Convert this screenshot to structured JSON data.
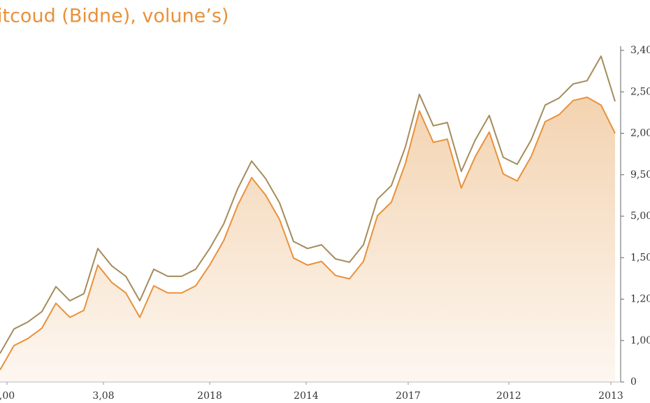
{
  "chart_data": {
    "type": "line",
    "title": "itcoud (Bidne), volune’s)",
    "x": [
      0,
      1,
      2,
      3,
      4,
      5,
      6,
      7,
      8,
      9,
      10,
      11,
      12,
      13,
      14,
      15,
      16,
      17,
      18,
      19,
      20,
      21,
      22,
      23,
      24,
      25,
      26,
      27,
      28,
      29,
      30,
      31,
      32,
      33,
      34,
      35,
      36,
      37,
      38,
      39,
      40,
      41,
      42,
      43,
      44
    ],
    "series": [
      {
        "color": "#a48c5c",
        "values": [
          0.69,
          1.28,
          1.45,
          1.7,
          2.3,
          1.96,
          2.13,
          3.22,
          2.8,
          2.55,
          1.96,
          2.72,
          2.55,
          2.55,
          2.72,
          3.22,
          3.81,
          4.66,
          5.33,
          4.91,
          4.32,
          3.39,
          3.22,
          3.31,
          2.97,
          2.89,
          3.31,
          4.41,
          4.74,
          5.67,
          6.94,
          6.18,
          6.26,
          5.08,
          5.84,
          6.43,
          5.42,
          5.25,
          5.84,
          6.68,
          6.85,
          7.19,
          7.27,
          7.86,
          6.77
        ]
      },
      {
        "color": "#e8913a",
        "values": [
          0.29,
          0.88,
          1.05,
          1.3,
          1.9,
          1.56,
          1.73,
          2.82,
          2.4,
          2.15,
          1.56,
          2.32,
          2.15,
          2.15,
          2.32,
          2.82,
          3.41,
          4.26,
          4.93,
          4.51,
          3.92,
          2.99,
          2.82,
          2.91,
          2.57,
          2.49,
          2.91,
          4.01,
          4.34,
          5.27,
          6.54,
          5.78,
          5.86,
          4.68,
          5.44,
          6.03,
          5.02,
          4.85,
          5.44,
          6.28,
          6.45,
          6.79,
          6.87,
          6.68,
          6.0
        ],
        "area": true
      }
    ],
    "xlim": [
      0,
      44
    ],
    "xticks": [
      {
        "value": 0.5,
        "label": ",00"
      },
      {
        "value": 7.4,
        "label": "3,08"
      },
      {
        "value": 15,
        "label": "2018"
      },
      {
        "value": 21.9,
        "label": "2014"
      },
      {
        "value": 29.2,
        "label": "2017"
      },
      {
        "value": 36.4,
        "label": "2012"
      },
      {
        "value": 43.7,
        "label": "2013"
      }
    ],
    "ylim": [
      0,
      8
    ],
    "yticks": [
      0,
      {
        "value": 1,
        "label": "1,00"
      },
      {
        "value": 2,
        "label": "1,20"
      },
      {
        "value": 3,
        "label": "1,50"
      },
      {
        "value": 4,
        "label": "5,00"
      },
      {
        "value": 5,
        "label": "9,50"
      },
      {
        "value": 6,
        "label": "2,00"
      },
      {
        "value": 7,
        "label": "2,50"
      },
      {
        "value": 8,
        "label": "3,40"
      }
    ],
    "grid": false
  }
}
